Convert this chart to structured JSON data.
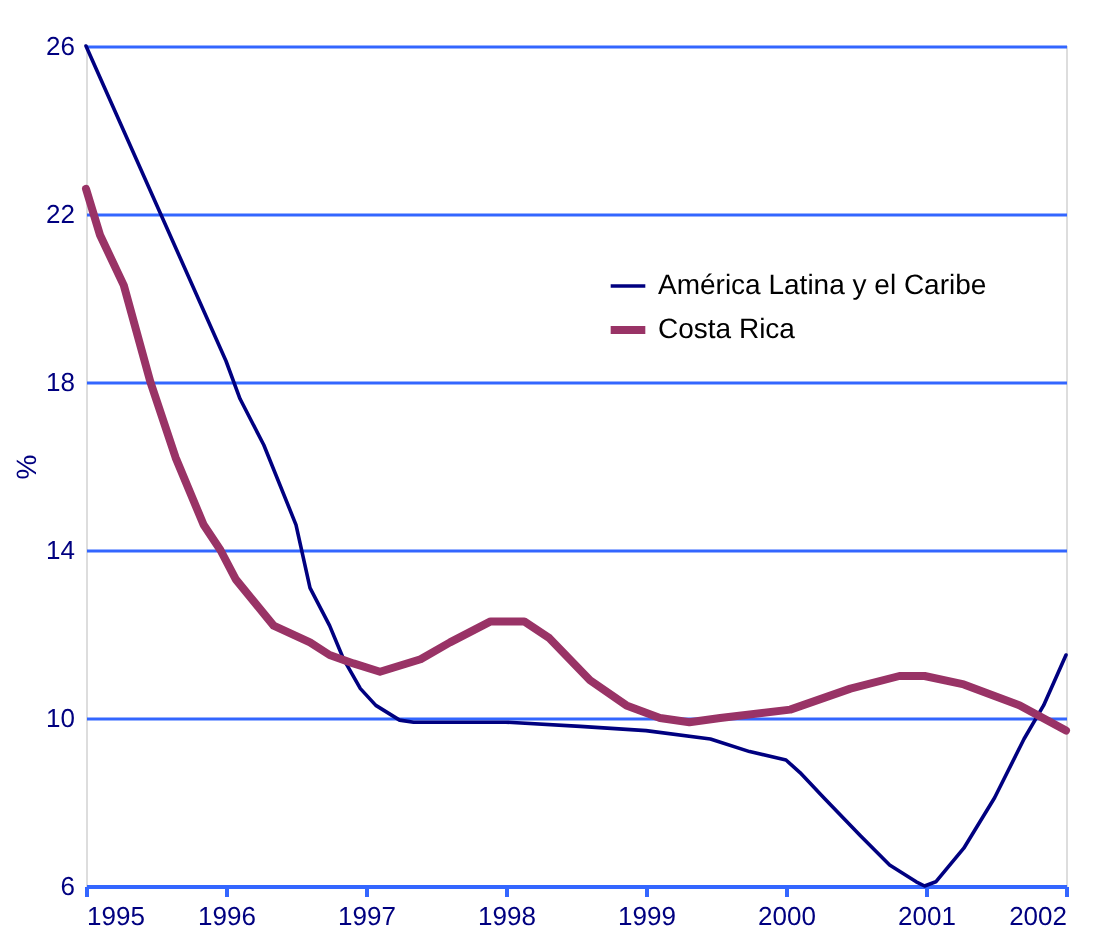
{
  "chart_data": {
    "type": "line",
    "ylabel": "%",
    "xlim": [
      1995,
      2002
    ],
    "xticks": [
      1995,
      1996,
      1997,
      1998,
      1999,
      2000,
      2001,
      2002
    ],
    "ylim": [
      6,
      26
    ],
    "yticks": [
      6,
      10,
      14,
      18,
      22,
      26
    ],
    "grid": "y",
    "legend": "top right",
    "line_style": "solid",
    "marker": "none",
    "series": [
      {
        "name": "América Latina y el Caribe",
        "color": "#000080",
        "x": [
          1995,
          1996,
          1996.1,
          1996.27,
          1996.5,
          1996.6,
          1996.74,
          1996.84,
          1996.96,
          1997.07,
          1997.24,
          1997.34,
          1998.0,
          1998.53,
          1999.0,
          1999.46,
          1999.74,
          2000.0,
          2000.1,
          2000.27,
          2000.53,
          2000.74,
          2000.93,
          2000.99,
          2001.07,
          2001.27,
          2001.49,
          2001.7,
          2001.84,
          2002
        ],
        "values": [
          26,
          18.5,
          17.6,
          16.5,
          14.6,
          13.1,
          12.2,
          11.4,
          10.7,
          10.3,
          9.95,
          9.9,
          9.9,
          9.8,
          9.7,
          9.5,
          9.2,
          9.0,
          8.7,
          8.1,
          7.2,
          6.5,
          6.1,
          6.0,
          6.1,
          6.9,
          8.1,
          9.5,
          10.3,
          11.5
        ]
      },
      {
        "name": "Costa Rica",
        "color": "#993366",
        "x": [
          1995,
          1995.1,
          1995.27,
          1995.46,
          1995.64,
          1995.84,
          1995.96,
          1996.07,
          1996.34,
          1996.6,
          1996.74,
          1996.91,
          1997.1,
          1997.39,
          1997.6,
          1997.89,
          1998.13,
          1998.31,
          1998.6,
          1998.86,
          1999.1,
          1999.31,
          1999.53,
          2000.03,
          2000.46,
          2000.81,
          2000.99,
          2001.27,
          2001.67,
          2002
        ],
        "values": [
          22.6,
          21.5,
          20.3,
          18.0,
          16.2,
          14.6,
          14.0,
          13.3,
          12.2,
          11.8,
          11.5,
          11.3,
          11.1,
          11.4,
          11.8,
          12.3,
          12.3,
          11.9,
          10.9,
          10.3,
          10.0,
          9.9,
          10.0,
          10.2,
          10.7,
          11.0,
          11.0,
          10.8,
          10.3,
          9.7
        ]
      }
    ]
  }
}
